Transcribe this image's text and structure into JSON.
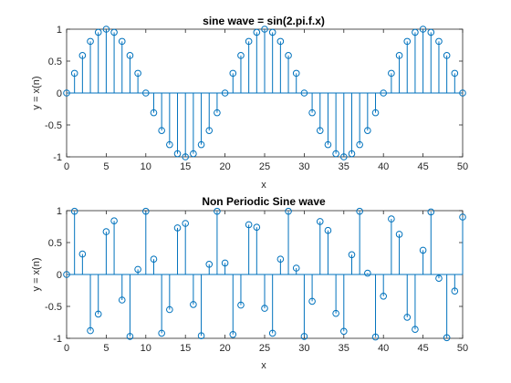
{
  "chart_data": [
    {
      "type": "stem",
      "title": "sine wave = sin(2.pi.f.x)",
      "xlabel": "x",
      "ylabel": "y = x(n)",
      "xlim": [
        0,
        50
      ],
      "ylim": [
        -1,
        1
      ],
      "xticks": [
        0,
        5,
        10,
        15,
        20,
        25,
        30,
        35,
        40,
        45,
        50
      ],
      "yticks": [
        -1,
        -0.5,
        0,
        0.5,
        1
      ],
      "ytick_labels": [
        "-1",
        "-0.5",
        "0",
        "0.5",
        "1"
      ],
      "grid": false,
      "color": "#0072BD",
      "x": [
        0,
        1,
        2,
        3,
        4,
        5,
        6,
        7,
        8,
        9,
        10,
        11,
        12,
        13,
        14,
        15,
        16,
        17,
        18,
        19,
        20,
        21,
        22,
        23,
        24,
        25,
        26,
        27,
        28,
        29,
        30,
        31,
        32,
        33,
        34,
        35,
        36,
        37,
        38,
        39,
        40,
        41,
        42,
        43,
        44,
        45,
        46,
        47,
        48,
        49,
        50
      ],
      "values": [
        0,
        0.309,
        0.588,
        0.809,
        0.951,
        1,
        0.951,
        0.809,
        0.588,
        0.309,
        0,
        -0.309,
        -0.588,
        -0.809,
        -0.951,
        -1,
        -0.951,
        -0.809,
        -0.588,
        -0.309,
        0,
        0.309,
        0.588,
        0.809,
        0.951,
        1,
        0.951,
        0.809,
        0.588,
        0.309,
        0,
        -0.309,
        -0.588,
        -0.809,
        -0.951,
        -1,
        -0.951,
        -0.809,
        -0.588,
        -0.309,
        0,
        0.309,
        0.588,
        0.809,
        0.951,
        1,
        0.951,
        0.809,
        0.588,
        0.309,
        0
      ]
    },
    {
      "type": "stem",
      "title": "Non Periodic Sine wave",
      "xlabel": "x",
      "ylabel": "y = x(n)",
      "xlim": [
        0,
        50
      ],
      "ylim": [
        -1,
        1
      ],
      "xticks": [
        0,
        5,
        10,
        15,
        20,
        25,
        30,
        35,
        40,
        45,
        50
      ],
      "yticks": [
        -1,
        -0.5,
        0,
        0.5,
        1
      ],
      "ytick_labels": [
        "-1",
        "-0.5",
        "0",
        "0.5",
        "1"
      ],
      "grid": false,
      "color": "#0072BD",
      "x": [
        0,
        1,
        2,
        3,
        4,
        5,
        6,
        7,
        8,
        9,
        10,
        11,
        12,
        13,
        14,
        15,
        16,
        17,
        18,
        19,
        20,
        21,
        22,
        23,
        24,
        25,
        26,
        27,
        28,
        29,
        30,
        31,
        32,
        33,
        34,
        35,
        36,
        37,
        38,
        39,
        40,
        41,
        42,
        43,
        44,
        45,
        46,
        47,
        48,
        49,
        50
      ],
      "values": [
        0,
        0.99,
        0.32,
        -0.88,
        -0.62,
        0.67,
        0.84,
        -0.4,
        -0.97,
        0.08,
        0.99,
        0.24,
        -0.92,
        -0.55,
        0.73,
        0.8,
        -0.47,
        -0.96,
        0.16,
        0.99,
        0.18,
        -0.94,
        -0.48,
        0.78,
        0.74,
        -0.53,
        -0.92,
        0.24,
        0.99,
        0.1,
        -0.97,
        -0.42,
        0.83,
        0.69,
        -0.61,
        -0.89,
        0.31,
        0.99,
        0.02,
        -0.98,
        -0.34,
        0.87,
        0.63,
        -0.67,
        -0.86,
        0.38,
        0.98,
        -0.06,
        -0.99,
        -0.26,
        0.9
      ]
    }
  ]
}
